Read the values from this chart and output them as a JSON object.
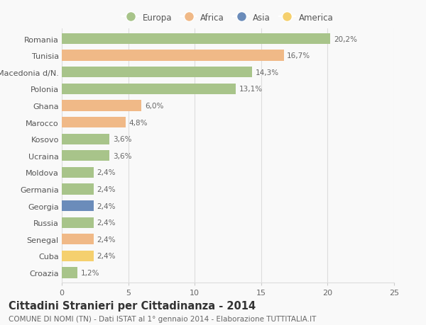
{
  "categories": [
    "Romania",
    "Tunisia",
    "Macedonia d/N.",
    "Polonia",
    "Ghana",
    "Marocco",
    "Kosovo",
    "Ucraina",
    "Moldova",
    "Germania",
    "Georgia",
    "Russia",
    "Senegal",
    "Cuba",
    "Croazia"
  ],
  "values": [
    20.2,
    16.7,
    14.3,
    13.1,
    6.0,
    4.8,
    3.6,
    3.6,
    2.4,
    2.4,
    2.4,
    2.4,
    2.4,
    2.4,
    1.2
  ],
  "labels": [
    "20,2%",
    "16,7%",
    "14,3%",
    "13,1%",
    "6,0%",
    "4,8%",
    "3,6%",
    "3,6%",
    "2,4%",
    "2,4%",
    "2,4%",
    "2,4%",
    "2,4%",
    "2,4%",
    "1,2%"
  ],
  "colors": [
    "#a8c48a",
    "#f0b987",
    "#a8c48a",
    "#a8c48a",
    "#f0b987",
    "#f0b987",
    "#a8c48a",
    "#a8c48a",
    "#a8c48a",
    "#a8c48a",
    "#6b8cba",
    "#a8c48a",
    "#f0b987",
    "#f5d06e",
    "#a8c48a"
  ],
  "legend_labels": [
    "Europa",
    "Africa",
    "Asia",
    "America"
  ],
  "legend_colors": [
    "#a8c48a",
    "#f0b987",
    "#6b8cba",
    "#f5d06e"
  ],
  "xlim": [
    0,
    25
  ],
  "xticks": [
    0,
    5,
    10,
    15,
    20,
    25
  ],
  "title": "Cittadini Stranieri per Cittadinanza - 2014",
  "subtitle": "COMUNE DI NOMI (TN) - Dati ISTAT al 1° gennaio 2014 - Elaborazione TUTTITALIA.IT",
  "background_color": "#f9f9f9",
  "bar_height": 0.65,
  "grid_color": "#dddddd",
  "label_fontsize": 7.5,
  "tick_fontsize": 8,
  "title_fontsize": 10.5,
  "subtitle_fontsize": 7.5
}
